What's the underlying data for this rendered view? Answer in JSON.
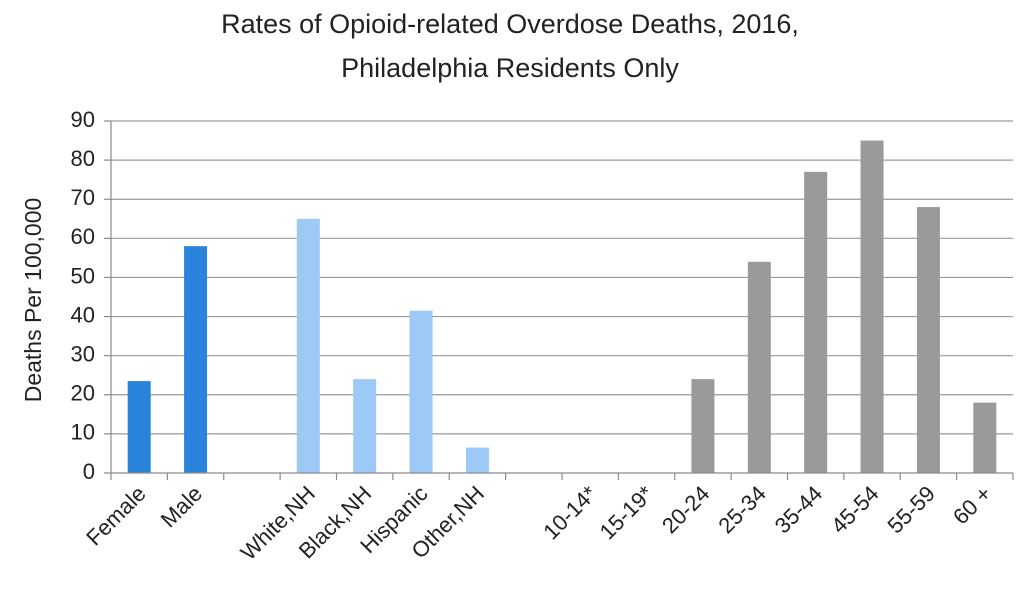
{
  "chart_data": {
    "type": "bar",
    "title": [
      "Rates of Opioid-related Overdose Deaths, 2016,",
      "Philadelphia Residents Only"
    ],
    "ylabel": "Deaths  Per 100,000",
    "xlabel": "",
    "ylim": [
      0,
      90
    ],
    "yticks": [
      0,
      10,
      20,
      30,
      40,
      50,
      60,
      70,
      80,
      90
    ],
    "grid": true,
    "categories": [
      "Female",
      "Male",
      "",
      "White,NH",
      "Black,NH",
      "Hispanic",
      "Other,NH",
      "",
      "10-14*",
      "15-19*",
      "20-24",
      "25-34",
      "35-44",
      "45-54",
      "55-59",
      "60 +"
    ],
    "values": [
      23.5,
      58,
      null,
      65,
      24,
      41.5,
      6.5,
      null,
      null,
      null,
      24,
      54,
      77,
      85,
      68,
      18
    ],
    "colors": [
      "#2b84dc",
      "#2b84dc",
      null,
      "#9cc9f5",
      "#9cc9f5",
      "#9cc9f5",
      "#9cc9f5",
      null,
      "#9a9a9a",
      "#9a9a9a",
      "#9a9a9a",
      "#9a9a9a",
      "#9a9a9a",
      "#9a9a9a",
      "#9a9a9a",
      "#9a9a9a"
    ],
    "legend": "none"
  }
}
